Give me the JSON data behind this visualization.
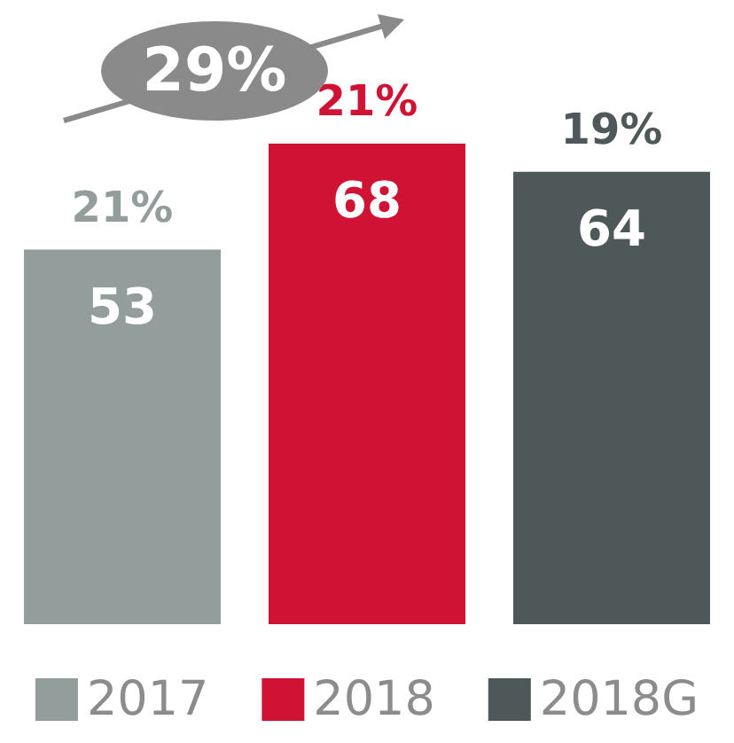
{
  "chart_data": {
    "type": "bar",
    "categories": [
      null,
      null,
      null
    ],
    "stacked": true,
    "series": [
      {
        "name": "2017",
        "color": "#939d9b",
        "values": [
          53,
          null,
          null
        ]
      },
      {
        "name": "2018",
        "color": "#d01234",
        "values": [
          null,
          68,
          null
        ]
      },
      {
        "name": "2018G",
        "color": "#4f5858",
        "values": [
          null,
          null,
          64
        ]
      }
    ],
    "data_labels": true,
    "legend": "bottom",
    "tick_labels": false,
    "annotations": [
      "21%",
      "21%",
      "19%",
      "29%"
    ]
  }
}
